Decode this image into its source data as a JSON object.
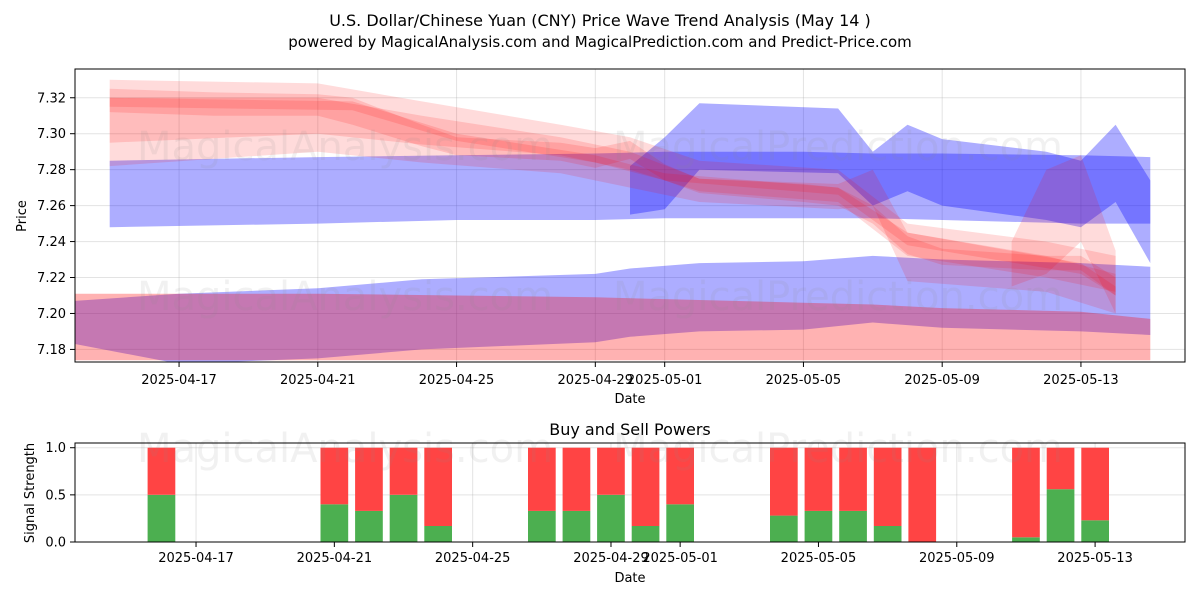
{
  "title_line1": "U.S. Dollar/Chinese Yuan (CNY) Price Wave Trend Analysis (May 14 )",
  "title_line2": "powered by MagicalAnalysis.com and MagicalPrediction.com and Predict-Price.com",
  "watermarks": [
    "MagicalAnalysis.com",
    "MagicalPrediction.com"
  ],
  "colors": {
    "red": "#ff0000",
    "blue": "#0000ff",
    "buy": "#4caf50",
    "sell": "#ff4444"
  },
  "chart_data": [
    {
      "type": "area",
      "title": "",
      "xlabel": "Date",
      "ylabel": "Price",
      "x_ticks": [
        "2025-04-17",
        "2025-04-21",
        "2025-04-25",
        "2025-04-29",
        "2025-05-01",
        "2025-05-05",
        "2025-05-09",
        "2025-05-13"
      ],
      "y_ticks": [
        "7.18",
        "7.20",
        "7.22",
        "7.24",
        "7.26",
        "7.28",
        "7.30",
        "7.32"
      ],
      "xlim": [
        "2025-04-14",
        "2025-05-16"
      ],
      "ylim": [
        7.173,
        7.336
      ],
      "grid": true,
      "series": [
        {
          "color": "blue",
          "kind": "band",
          "x": [
            "2025-04-15",
            "2025-04-21",
            "2025-04-25",
            "2025-04-29",
            "2025-05-01",
            "2025-05-05",
            "2025-05-07",
            "2025-05-09",
            "2025-05-13",
            "2025-05-15"
          ],
          "upper": [
            7.285,
            7.287,
            7.288,
            7.289,
            7.29,
            7.29,
            7.289,
            7.289,
            7.288,
            7.287
          ],
          "lower": [
            7.248,
            7.25,
            7.252,
            7.252,
            7.253,
            7.253,
            7.253,
            7.252,
            7.25,
            7.25
          ]
        },
        {
          "color": "blue",
          "kind": "band",
          "x": [
            "2025-04-30",
            "2025-05-01",
            "2025-05-02",
            "2025-05-06",
            "2025-05-07",
            "2025-05-08",
            "2025-05-09",
            "2025-05-12",
            "2025-05-13",
            "2025-05-14",
            "2025-05-15"
          ],
          "upper": [
            7.282,
            7.298,
            7.317,
            7.314,
            7.29,
            7.305,
            7.297,
            7.29,
            7.285,
            7.305,
            7.274
          ],
          "lower": [
            7.255,
            7.258,
            7.28,
            7.278,
            7.26,
            7.268,
            7.26,
            7.252,
            7.248,
            7.262,
            7.228
          ]
        },
        {
          "color": "blue",
          "kind": "band",
          "x": [
            "2025-04-14",
            "2025-04-17",
            "2025-04-21",
            "2025-04-24",
            "2025-04-29",
            "2025-04-30",
            "2025-05-02",
            "2025-05-05",
            "2025-05-07",
            "2025-05-09",
            "2025-05-13",
            "2025-05-15"
          ],
          "upper": [
            7.207,
            7.211,
            7.214,
            7.219,
            7.222,
            7.225,
            7.228,
            7.229,
            7.232,
            7.23,
            7.228,
            7.226
          ],
          "lower": [
            7.183,
            7.172,
            7.175,
            7.18,
            7.184,
            7.187,
            7.19,
            7.191,
            7.195,
            7.192,
            7.19,
            7.188
          ]
        },
        {
          "color": "red",
          "kind": "band",
          "x": [
            "2025-04-14",
            "2025-04-21",
            "2025-04-25",
            "2025-04-29",
            "2025-05-01",
            "2025-05-05",
            "2025-05-07",
            "2025-05-09",
            "2025-05-13",
            "2025-05-15"
          ],
          "upper": [
            7.211,
            7.211,
            7.21,
            7.209,
            7.208,
            7.206,
            7.205,
            7.203,
            7.201,
            7.197
          ],
          "lower": [
            7.174,
            7.174,
            7.174,
            7.174,
            7.174,
            7.174,
            7.174,
            7.174,
            7.174,
            7.174
          ]
        },
        {
          "color": "red",
          "kind": "band",
          "x": [
            "2025-04-15",
            "2025-04-18",
            "2025-04-21",
            "2025-04-22",
            "2025-04-24",
            "2025-04-25",
            "2025-04-28",
            "2025-04-29",
            "2025-04-30",
            "2025-05-01",
            "2025-05-02",
            "2025-05-05",
            "2025-05-06",
            "2025-05-07",
            "2025-05-08",
            "2025-05-09",
            "2025-05-12",
            "2025-05-13",
            "2025-05-14"
          ],
          "upper": [
            7.325,
            7.323,
            7.322,
            7.32,
            7.305,
            7.298,
            7.295,
            7.292,
            7.296,
            7.283,
            7.275,
            7.272,
            7.27,
            7.26,
            7.243,
            7.236,
            7.232,
            7.232,
            7.22
          ],
          "lower": [
            7.312,
            7.31,
            7.31,
            7.305,
            7.293,
            7.288,
            7.285,
            7.281,
            7.286,
            7.274,
            7.267,
            7.262,
            7.26,
            7.25,
            7.233,
            7.227,
            7.224,
            7.224,
            7.21
          ]
        },
        {
          "color": "red",
          "kind": "band",
          "x": [
            "2025-04-15",
            "2025-04-21",
            "2025-04-24",
            "2025-04-28",
            "2025-04-30",
            "2025-05-02",
            "2025-05-06",
            "2025-05-08",
            "2025-05-12",
            "2025-05-14"
          ],
          "upper": [
            7.33,
            7.328,
            7.318,
            7.305,
            7.298,
            7.285,
            7.28,
            7.25,
            7.24,
            7.232
          ],
          "lower": [
            7.295,
            7.3,
            7.294,
            7.288,
            7.28,
            7.268,
            7.262,
            7.232,
            7.22,
            7.212
          ]
        },
        {
          "color": "red",
          "kind": "band",
          "x": [
            "2025-04-15",
            "2025-04-21",
            "2025-04-24",
            "2025-04-28",
            "2025-04-30",
            "2025-05-02",
            "2025-05-06",
            "2025-05-07",
            "2025-05-08",
            "2025-05-12",
            "2025-05-14"
          ],
          "upper": [
            7.32,
            7.32,
            7.31,
            7.298,
            7.29,
            7.275,
            7.272,
            7.28,
            7.245,
            7.232,
            7.222
          ],
          "lower": [
            7.282,
            7.29,
            7.284,
            7.278,
            7.27,
            7.262,
            7.258,
            7.26,
            7.218,
            7.212,
            7.2
          ]
        },
        {
          "color": "red",
          "kind": "band",
          "x": [
            "2025-05-11",
            "2025-05-12",
            "2025-05-13",
            "2025-05-14"
          ],
          "upper": [
            7.24,
            7.28,
            7.288,
            7.235
          ],
          "lower": [
            7.215,
            7.222,
            7.24,
            7.2
          ]
        },
        {
          "color": "red",
          "kind": "band",
          "x": [
            "2025-04-15",
            "2025-04-22",
            "2025-04-25",
            "2025-04-29",
            "2025-05-01",
            "2025-05-06",
            "2025-05-08",
            "2025-05-13",
            "2025-05-14"
          ],
          "upper": [
            7.32,
            7.318,
            7.3,
            7.288,
            7.278,
            7.27,
            7.245,
            7.228,
            7.215
          ],
          "lower": [
            7.315,
            7.313,
            7.296,
            7.284,
            7.274,
            7.266,
            7.238,
            7.222,
            7.21
          ]
        }
      ]
    },
    {
      "type": "bar",
      "title": "Buy and Sell Powers",
      "xlabel": "Date",
      "ylabel": "Signal Strength",
      "x_ticks": [
        "2025-04-17",
        "2025-04-21",
        "2025-04-25",
        "2025-04-29",
        "2025-05-01",
        "2025-05-05",
        "2025-05-09",
        "2025-05-13"
      ],
      "y_ticks": [
        "0.0",
        "0.5",
        "1.0"
      ],
      "ylim": [
        0,
        1.05
      ],
      "stacked": true,
      "categories": [
        "2025-04-16",
        "2025-04-21",
        "2025-04-22",
        "2025-04-23",
        "2025-04-24",
        "2025-04-27",
        "2025-04-28",
        "2025-04-29",
        "2025-04-30",
        "2025-05-01",
        "2025-05-04",
        "2025-05-05",
        "2025-05-06",
        "2025-05-07",
        "2025-05-08",
        "2025-05-11",
        "2025-05-12",
        "2025-05-13"
      ],
      "series": [
        {
          "color": "buy",
          "values": [
            0.5,
            0.4,
            0.33,
            0.5,
            0.17,
            0.33,
            0.33,
            0.5,
            0.17,
            0.4,
            0.28,
            0.33,
            0.33,
            0.17,
            0.0,
            0.05,
            0.56,
            0.23
          ]
        },
        {
          "color": "sell",
          "values": [
            0.5,
            0.6,
            0.67,
            0.5,
            0.83,
            0.67,
            0.67,
            0.5,
            0.83,
            0.6,
            0.72,
            0.67,
            0.67,
            0.83,
            1.0,
            0.95,
            0.44,
            0.77
          ]
        }
      ]
    }
  ]
}
